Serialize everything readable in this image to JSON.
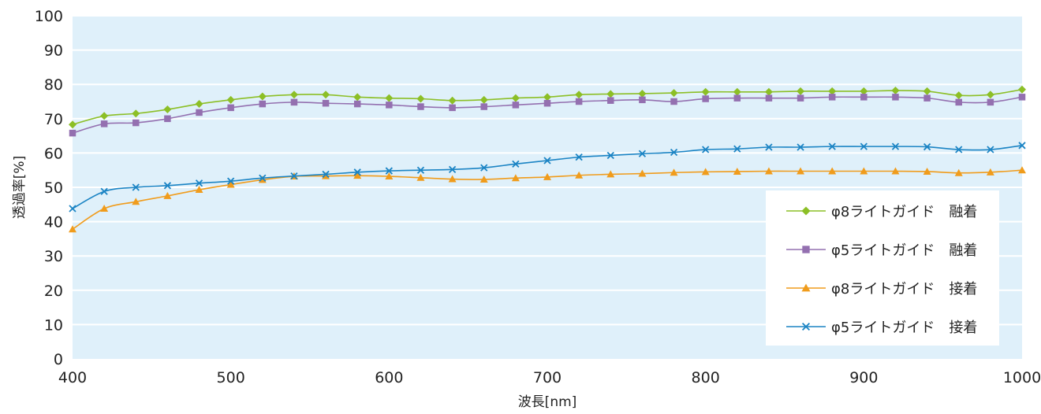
{
  "chart_data": {
    "type": "line",
    "xlabel": "波長[nm]",
    "ylabel": "透過率[%]",
    "xlim": [
      400,
      1000
    ],
    "ylim": [
      0,
      100
    ],
    "xticks": [
      "400",
      "500",
      "600",
      "700",
      "800",
      "900",
      "1000"
    ],
    "yticks": [
      "0",
      "10",
      "20",
      "30",
      "40",
      "50",
      "60",
      "70",
      "80",
      "90",
      "100"
    ],
    "grid": true,
    "legend_position": "bottom-right",
    "plot_background": "#dff0fa",
    "x": [
      400,
      420,
      440,
      460,
      480,
      500,
      520,
      540,
      560,
      580,
      600,
      620,
      640,
      660,
      680,
      700,
      720,
      740,
      760,
      780,
      800,
      820,
      840,
      860,
      880,
      900,
      920,
      940,
      960,
      980,
      1000
    ],
    "series": [
      {
        "name": "φ8ライトガイド　融着",
        "color": "#8cbf26",
        "marker": "diamond",
        "values": [
          68.3,
          70.8,
          71.5,
          72.7,
          74.3,
          75.5,
          76.5,
          77.0,
          77.0,
          76.3,
          76.0,
          75.8,
          75.3,
          75.5,
          76.0,
          76.3,
          77.0,
          77.2,
          77.3,
          77.5,
          77.8,
          77.8,
          77.8,
          78.0,
          78.0,
          78.0,
          78.2,
          78.0,
          76.8,
          77.0,
          78.5
        ]
      },
      {
        "name": "φ5ライトガイド　融着",
        "color": "#9470b0",
        "marker": "square",
        "values": [
          65.8,
          68.5,
          68.8,
          70.0,
          71.8,
          73.2,
          74.3,
          74.8,
          74.5,
          74.3,
          74.0,
          73.5,
          73.2,
          73.5,
          74.0,
          74.5,
          75.0,
          75.3,
          75.5,
          75.0,
          75.8,
          76.0,
          76.0,
          76.0,
          76.3,
          76.3,
          76.3,
          76.0,
          74.8,
          74.8,
          76.3
        ]
      },
      {
        "name": "φ8ライトガイド　接着",
        "color": "#f09c1c",
        "marker": "triangle",
        "values": [
          37.8,
          43.8,
          45.8,
          47.5,
          49.3,
          50.8,
          52.2,
          53.2,
          53.3,
          53.4,
          53.2,
          52.8,
          52.4,
          52.3,
          52.7,
          53.0,
          53.5,
          53.8,
          54.0,
          54.3,
          54.5,
          54.6,
          54.7,
          54.7,
          54.7,
          54.7,
          54.7,
          54.6,
          54.2,
          54.4,
          55.0
        ]
      },
      {
        "name": "φ5ライトガイド　接着",
        "color": "#1b84c4",
        "marker": "x",
        "values": [
          43.8,
          48.8,
          50.0,
          50.5,
          51.2,
          51.8,
          52.7,
          53.3,
          53.8,
          54.4,
          54.8,
          55.0,
          55.2,
          55.7,
          56.8,
          57.8,
          58.8,
          59.3,
          59.8,
          60.2,
          61.0,
          61.2,
          61.7,
          61.7,
          61.9,
          61.9,
          61.9,
          61.8,
          61.0,
          61.0,
          62.2
        ]
      }
    ]
  }
}
